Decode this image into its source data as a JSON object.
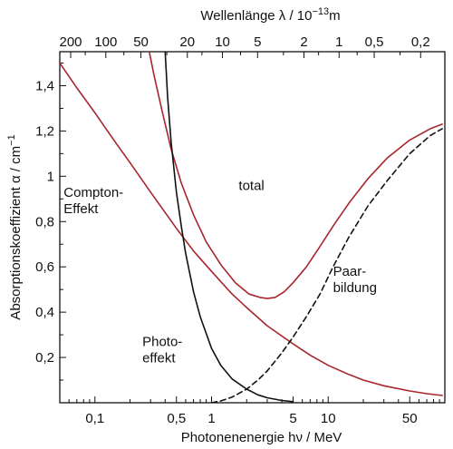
{
  "chart_data": {
    "type": "line",
    "title": "",
    "xlabel": "Photonenenergie hν / MeV",
    "x2label": "Wellenlänge λ / 10",
    "x2label_exp": "−13",
    "x2label_unit": "m",
    "ylabel": "Absorptionskoeffizient α / cm",
    "ylabel_exp": "−1",
    "x_scale": "log",
    "xlim": [
      0.05,
      100
    ],
    "ylim": [
      0,
      1.55
    ],
    "grid": false,
    "y_ticks": [
      {
        "v": 0.2,
        "label": "0,2"
      },
      {
        "v": 0.4,
        "label": "0,4"
      },
      {
        "v": 0.6,
        "label": "0,6"
      },
      {
        "v": 0.8,
        "label": "0,8"
      },
      {
        "v": 1.0,
        "label": "1"
      },
      {
        "v": 1.2,
        "label": "1,2"
      },
      {
        "v": 1.4,
        "label": "1,4"
      }
    ],
    "x_ticks": [
      {
        "v": 0.1,
        "label": "0,1"
      },
      {
        "v": 0.5,
        "label": "0,5"
      },
      {
        "v": 1,
        "label": "1"
      },
      {
        "v": 5,
        "label": "5"
      },
      {
        "v": 10,
        "label": "10"
      },
      {
        "v": 50,
        "label": "50"
      }
    ],
    "x2_ticks": [
      {
        "lambda": 200,
        "label": "200"
      },
      {
        "lambda": 100,
        "label": "100"
      },
      {
        "lambda": 50,
        "label": "50"
      },
      {
        "lambda": 20,
        "label": "20"
      },
      {
        "lambda": 10,
        "label": "10"
      },
      {
        "lambda": 5,
        "label": "5"
      },
      {
        "lambda": 2,
        "label": "2"
      },
      {
        "lambda": 1,
        "label": "1"
      },
      {
        "lambda": 0.5,
        "label": "0,5"
      },
      {
        "lambda": 0.2,
        "label": "0,2"
      }
    ],
    "series": [
      {
        "label": "total",
        "color": "#a8252b",
        "dash": "solid",
        "x": [
          0.28,
          0.32,
          0.38,
          0.45,
          0.55,
          0.7,
          0.9,
          1.2,
          1.6,
          2.1,
          2.6,
          3.0,
          3.5,
          4.2,
          5.0,
          6.5,
          8.5,
          11,
          15,
          22,
          32,
          50,
          75,
          95
        ],
        "y": [
          1.6,
          1.45,
          1.28,
          1.12,
          0.97,
          0.83,
          0.71,
          0.61,
          0.53,
          0.48,
          0.465,
          0.46,
          0.465,
          0.49,
          0.53,
          0.6,
          0.69,
          0.78,
          0.88,
          0.99,
          1.08,
          1.16,
          1.21,
          1.23
        ]
      },
      {
        "label": "Compton-Effekt",
        "color": "#a8252b",
        "dash": "solid",
        "x": [
          0.05,
          0.07,
          0.1,
          0.15,
          0.2,
          0.3,
          0.5,
          0.7,
          1.0,
          1.5,
          2,
          3,
          5,
          7,
          10,
          15,
          20,
          30,
          50,
          70,
          95
        ],
        "y": [
          1.5,
          1.39,
          1.28,
          1.15,
          1.06,
          0.93,
          0.77,
          0.67,
          0.58,
          0.48,
          0.42,
          0.34,
          0.26,
          0.21,
          0.165,
          0.125,
          0.1,
          0.075,
          0.052,
          0.04,
          0.032
        ]
      },
      {
        "label": "Photoeffekt",
        "color": "#111111",
        "dash": "solid",
        "x": [
          0.395,
          0.42,
          0.45,
          0.5,
          0.55,
          0.6,
          0.7,
          0.8,
          1.0,
          1.2,
          1.5,
          2.0,
          2.5,
          3.0,
          4.0,
          5.0
        ],
        "y": [
          1.6,
          1.35,
          1.15,
          0.93,
          0.78,
          0.66,
          0.49,
          0.38,
          0.24,
          0.165,
          0.105,
          0.06,
          0.035,
          0.022,
          0.01,
          0.005
        ]
      },
      {
        "label": "Paarbildung",
        "color": "#111111",
        "dash": "dashed",
        "x": [
          1.0,
          1.2,
          1.5,
          2.0,
          2.5,
          3.0,
          4.0,
          5.0,
          6.5,
          8.5,
          11,
          15,
          22,
          32,
          50,
          75,
          95
        ],
        "y": [
          0.0,
          0.008,
          0.025,
          0.06,
          0.1,
          0.14,
          0.22,
          0.29,
          0.38,
          0.48,
          0.6,
          0.73,
          0.87,
          0.98,
          1.1,
          1.18,
          1.21
        ]
      }
    ],
    "annotations": [
      {
        "lines": [
          "total"
        ],
        "x": 2.2,
        "y": 0.94,
        "anchor": "middle"
      },
      {
        "lines": [
          "Compton-",
          "Effekt"
        ],
        "x": 0.054,
        "y": 0.91,
        "anchor": "start"
      },
      {
        "lines": [
          "Photo-",
          "effekt"
        ],
        "x": 0.255,
        "y": 0.25,
        "anchor": "start"
      },
      {
        "lines": [
          "Paar-",
          "bildung"
        ],
        "x": 11,
        "y": 0.56,
        "anchor": "start"
      }
    ]
  }
}
